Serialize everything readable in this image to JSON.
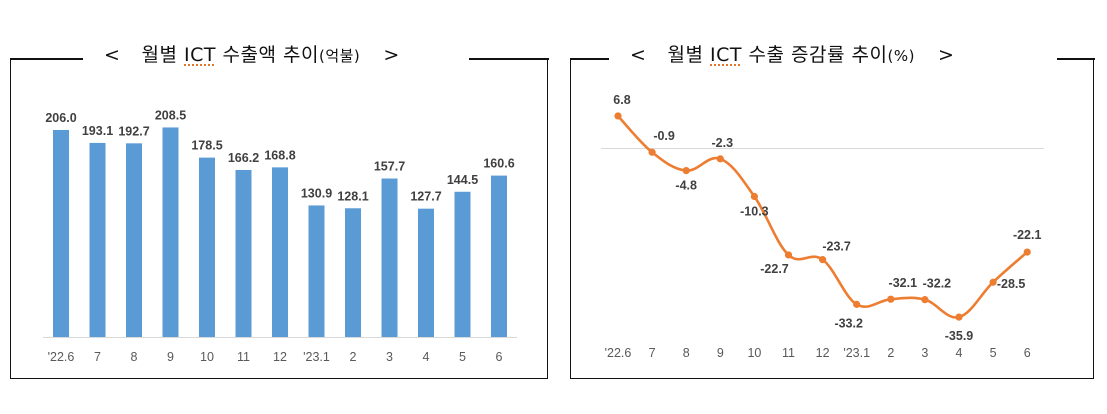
{
  "left_chart": {
    "title_prefix": "<",
    "title_main": "월별 ",
    "title_ict": "ICT",
    "title_rest": " 수출액 추이",
    "title_unit": "(억불)",
    "title_suffix": ">"
  },
  "right_chart": {
    "title_prefix": "<",
    "title_main": "월별 ",
    "title_ict": "ICT",
    "title_rest": " 수출 증감률 추이",
    "title_unit": "(%)",
    "title_suffix": ">"
  },
  "colors": {
    "bar": "#5b9bd5",
    "line": "#ed7d31",
    "axis": "#d9d9d9",
    "label": "#404040",
    "tick": "#595959"
  },
  "chart_data": [
    {
      "type": "bar",
      "title": "월별 ICT 수출액 추이(억불)",
      "xlabel": "",
      "ylabel": "억불",
      "categories": [
        "'22.6",
        "7",
        "8",
        "9",
        "10",
        "11",
        "12",
        "'23.1",
        "2",
        "3",
        "4",
        "5",
        "6"
      ],
      "values": [
        206.0,
        193.1,
        192.7,
        208.5,
        178.5,
        166.2,
        168.8,
        130.9,
        128.1,
        157.7,
        127.7,
        144.5,
        160.6
      ],
      "value_labels": [
        "206.0",
        "193.1",
        "192.7",
        "208.5",
        "178.5",
        "166.2",
        "168.8",
        "130.9",
        "128.1",
        "157.7",
        "127.7",
        "144.5",
        "160.6"
      ],
      "ylim": [
        0,
        215
      ],
      "grid": false,
      "legend": "none"
    },
    {
      "type": "line",
      "title": "월별 ICT 수출 증감률 추이(%)",
      "xlabel": "",
      "ylabel": "%",
      "categories": [
        "'22.6",
        "7",
        "8",
        "9",
        "10",
        "11",
        "12",
        "'23.1",
        "2",
        "3",
        "4",
        "5",
        "6"
      ],
      "values": [
        6.8,
        -0.9,
        -4.8,
        -2.3,
        -10.3,
        -22.7,
        -23.7,
        -33.2,
        -32.1,
        -32.2,
        -35.9,
        -28.5,
        -22.1
      ],
      "value_labels": [
        "6.8",
        "-0.9",
        "-4.8",
        "-2.3",
        "-10.3",
        "-22.7",
        "-23.7",
        "-33.2",
        "-32.1",
        "-32.2",
        "-35.9",
        "-28.5",
        "-22.1"
      ],
      "ylim": [
        -40,
        10
      ],
      "zero_line": true,
      "smooth": true,
      "grid": false,
      "legend": "none"
    }
  ]
}
